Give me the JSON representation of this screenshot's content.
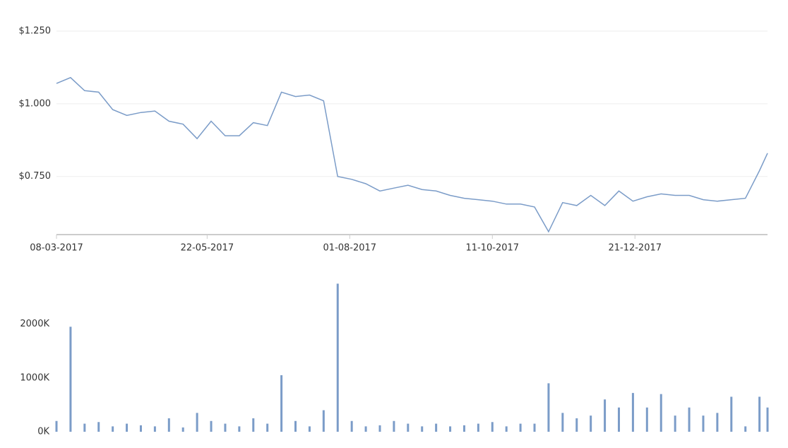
{
  "chart_data": [
    {
      "type": "line",
      "color": "#7b9cc8",
      "grid": true,
      "x": [
        "08-03-2017",
        "15-03-2017",
        "22-03-2017",
        "29-03-2017",
        "05-04-2017",
        "12-04-2017",
        "19-04-2017",
        "26-04-2017",
        "03-05-2017",
        "10-05-2017",
        "17-05-2017",
        "24-05-2017",
        "31-05-2017",
        "07-06-2017",
        "14-06-2017",
        "21-06-2017",
        "28-06-2017",
        "05-07-2017",
        "12-07-2017",
        "19-07-2017",
        "26-07-2017",
        "02-08-2017",
        "09-08-2017",
        "16-08-2017",
        "23-08-2017",
        "30-08-2017",
        "06-09-2017",
        "13-09-2017",
        "20-09-2017",
        "27-09-2017",
        "04-10-2017",
        "11-10-2017",
        "18-10-2017",
        "25-10-2017",
        "01-11-2017",
        "08-11-2017",
        "15-11-2017",
        "22-11-2017",
        "29-11-2017",
        "06-12-2017",
        "13-12-2017",
        "20-12-2017",
        "27-12-2017",
        "03-01-2018",
        "10-01-2018",
        "17-01-2018",
        "24-01-2018",
        "31-01-2018",
        "07-02-2018",
        "14-02-2018",
        "21-02-2018",
        "25-02-2018"
      ],
      "values": [
        1.07,
        1.09,
        1.045,
        1.04,
        0.98,
        0.96,
        0.97,
        0.975,
        0.94,
        0.93,
        0.88,
        0.94,
        0.89,
        0.89,
        0.935,
        0.925,
        1.04,
        1.025,
        1.03,
        1.01,
        0.75,
        0.74,
        0.725,
        0.7,
        0.71,
        0.72,
        0.705,
        0.7,
        0.685,
        0.675,
        0.67,
        0.665,
        0.655,
        0.655,
        0.645,
        0.56,
        0.66,
        0.65,
        0.685,
        0.65,
        0.7,
        0.665,
        0.68,
        0.69,
        0.685,
        0.685,
        0.67,
        0.665,
        0.67,
        0.675,
        0.77,
        0.83
      ],
      "xlim": [
        "08-03-2017",
        "25-02-2018"
      ],
      "xticks": [
        "08-03-2017",
        "22-05-2017",
        "01-08-2017",
        "11-10-2017",
        "21-12-2017"
      ],
      "ylim": [
        0.55,
        1.25
      ],
      "yticks": [
        {
          "value": 0.75,
          "label": "$0.750"
        },
        {
          "value": 1.0,
          "label": "$1.000"
        },
        {
          "value": 1.25,
          "label": "$1.250"
        }
      ]
    },
    {
      "type": "bar",
      "color": "#7b9cc8",
      "x": [
        "08-03-2017",
        "15-03-2017",
        "22-03-2017",
        "29-03-2017",
        "05-04-2017",
        "12-04-2017",
        "19-04-2017",
        "26-04-2017",
        "03-05-2017",
        "10-05-2017",
        "17-05-2017",
        "24-05-2017",
        "31-05-2017",
        "07-06-2017",
        "14-06-2017",
        "21-06-2017",
        "28-06-2017",
        "05-07-2017",
        "12-07-2017",
        "19-07-2017",
        "26-07-2017",
        "02-08-2017",
        "09-08-2017",
        "16-08-2017",
        "23-08-2017",
        "30-08-2017",
        "06-09-2017",
        "13-09-2017",
        "20-09-2017",
        "27-09-2017",
        "04-10-2017",
        "11-10-2017",
        "18-10-2017",
        "25-10-2017",
        "01-11-2017",
        "08-11-2017",
        "15-11-2017",
        "22-11-2017",
        "29-11-2017",
        "06-12-2017",
        "13-12-2017",
        "20-12-2017",
        "27-12-2017",
        "03-01-2018",
        "10-01-2018",
        "17-01-2018",
        "24-01-2018",
        "31-01-2018",
        "07-02-2018",
        "14-02-2018",
        "21-02-2018",
        "25-02-2018"
      ],
      "values": [
        200000,
        1950000,
        150000,
        180000,
        100000,
        150000,
        120000,
        100000,
        250000,
        80000,
        350000,
        200000,
        150000,
        100000,
        250000,
        150000,
        1050000,
        200000,
        100000,
        400000,
        2750000,
        200000,
        100000,
        120000,
        200000,
        150000,
        100000,
        150000,
        100000,
        120000,
        150000,
        180000,
        100000,
        150000,
        150000,
        900000,
        350000,
        250000,
        300000,
        600000,
        450000,
        720000,
        450000,
        700000,
        300000,
        450000,
        300000,
        350000,
        650000,
        100000,
        650000,
        450000
      ],
      "xlim": [
        "08-03-2017",
        "25-02-2018"
      ],
      "ylim": [
        0,
        2900000
      ],
      "yticks": [
        {
          "value": 0,
          "label": "0K"
        },
        {
          "value": 1000000,
          "label": "1000K"
        },
        {
          "value": 2000000,
          "label": "2000K"
        }
      ]
    }
  ]
}
